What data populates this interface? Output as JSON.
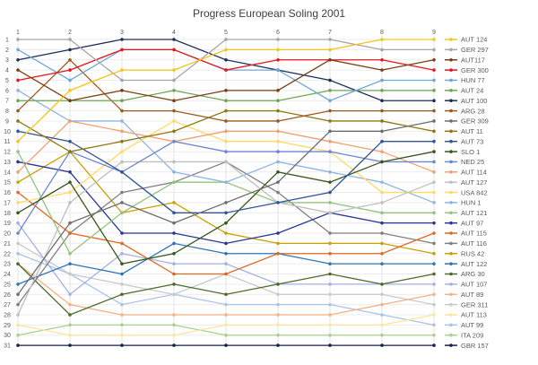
{
  "chart_data": {
    "type": "line",
    "title": "Progress European Soling 2001",
    "xlabel": "",
    "ylabel": "",
    "x": [
      1,
      2,
      3,
      4,
      5,
      6,
      7,
      8,
      9
    ],
    "ylim": [
      1,
      31
    ],
    "y_reversed": true,
    "y_ticks": [
      1,
      2,
      3,
      4,
      5,
      6,
      7,
      8,
      9,
      10,
      11,
      12,
      13,
      14,
      15,
      16,
      17,
      18,
      19,
      20,
      21,
      22,
      23,
      24,
      25,
      26,
      27,
      28,
      29,
      30,
      31
    ],
    "grid": true,
    "legend": "right",
    "series": [
      {
        "name": "AUT 124",
        "color": "#f5c518",
        "values": [
          11,
          6,
          4,
          4,
          2,
          2,
          2,
          1,
          1
        ]
      },
      {
        "name": "GER 297",
        "color": "#a6a6a6",
        "values": [
          1,
          1,
          5,
          5,
          1,
          1,
          1,
          2,
          2
        ]
      },
      {
        "name": "AUT117",
        "color": "#7b3f13",
        "values": [
          4,
          7,
          6,
          7,
          6,
          6,
          3,
          4,
          3
        ]
      },
      {
        "name": "GER 300",
        "color": "#e8141d",
        "values": [
          5,
          4,
          2,
          2,
          4,
          3,
          3,
          3,
          4
        ]
      },
      {
        "name": "HUN 77",
        "color": "#6fa8dc",
        "values": [
          2,
          5,
          2,
          2,
          4,
          4,
          7,
          5,
          5
        ]
      },
      {
        "name": "AUT 24",
        "color": "#6aa84f",
        "values": [
          7,
          7,
          7,
          6,
          7,
          7,
          6,
          6,
          6
        ]
      },
      {
        "name": "AUT 100",
        "color": "#1f2d5c",
        "values": [
          3,
          2,
          1,
          1,
          3,
          4,
          5,
          7,
          7
        ]
      },
      {
        "name": "ARG 28",
        "color": "#9c5a1e",
        "values": [
          8,
          3,
          8,
          8,
          9,
          9,
          8,
          8,
          8
        ]
      },
      {
        "name": "GER 309",
        "color": "#6d6d6d",
        "values": [
          26,
          19,
          17,
          19,
          17,
          15,
          10,
          10,
          9
        ]
      },
      {
        "name": "AUT 11",
        "color": "#8a7a10",
        "values": [
          9,
          12,
          11,
          10,
          8,
          8,
          9,
          9,
          10
        ]
      },
      {
        "name": "AUT 73",
        "color": "#2f5597",
        "values": [
          10,
          11,
          14,
          18,
          18,
          17,
          16,
          11,
          11
        ]
      },
      {
        "name": "SLO 1",
        "color": "#38571a",
        "values": [
          18,
          15,
          23,
          22,
          19,
          14,
          15,
          13,
          12
        ]
      },
      {
        "name": "NED 25",
        "color": "#6d85d6",
        "values": [
          20,
          12,
          14,
          11,
          12,
          12,
          12,
          13,
          13
        ]
      },
      {
        "name": "AUT 114",
        "color": "#f0a070",
        "values": [
          14,
          9,
          10,
          11,
          10,
          10,
          11,
          12,
          14
        ]
      },
      {
        "name": "AUT 127",
        "color": "#bfbfbf",
        "values": [
          28,
          17,
          13,
          13,
          13,
          17,
          18,
          17,
          15
        ]
      },
      {
        "name": "USA 842",
        "color": "#ffd966",
        "values": [
          17,
          16,
          12,
          9,
          11,
          11,
          12,
          16,
          16
        ]
      },
      {
        "name": "HUN 1",
        "color": "#8eb4e3",
        "values": [
          6,
          9,
          9,
          14,
          15,
          13,
          14,
          15,
          17
        ]
      },
      {
        "name": "AUT 121",
        "color": "#93c47d",
        "values": [
          12,
          22,
          18,
          15,
          15,
          17,
          17,
          18,
          18
        ]
      },
      {
        "name": "AUT 97",
        "color": "#283593",
        "values": [
          13,
          14,
          20,
          20,
          21,
          20,
          18,
          19,
          19
        ]
      },
      {
        "name": "AUT 115",
        "color": "#e06820",
        "values": [
          16,
          20,
          21,
          24,
          24,
          22,
          22,
          22,
          20
        ]
      },
      {
        "name": "AUT 116",
        "color": "#7f7f7f",
        "values": [
          27,
          20,
          16,
          15,
          13,
          16,
          20,
          20,
          21
        ]
      },
      {
        "name": "RUS 42",
        "color": "#c9a000",
        "values": [
          15,
          12,
          18,
          17,
          20,
          21,
          21,
          21,
          22
        ]
      },
      {
        "name": "AUT 122",
        "color": "#2e75b6",
        "values": [
          25,
          23,
          24,
          21,
          22,
          22,
          23,
          23,
          23
        ]
      },
      {
        "name": "ARG 30",
        "color": "#4e6b2a",
        "values": [
          23,
          28,
          26,
          25,
          26,
          25,
          24,
          25,
          24
        ]
      },
      {
        "name": "AUT 107",
        "color": "#a4b0e0",
        "values": [
          19,
          26,
          22,
          23,
          23,
          25,
          25,
          25,
          25
        ]
      },
      {
        "name": "AUT 89",
        "color": "#f4b183",
        "values": [
          23,
          27,
          28,
          28,
          28,
          28,
          28,
          27,
          26
        ]
      },
      {
        "name": "GER 311",
        "color": "#c9c9c9",
        "values": [
          21,
          24,
          25,
          26,
          24,
          26,
          26,
          26,
          27
        ]
      },
      {
        "name": "AUT 113",
        "color": "#ffe599",
        "values": [
          29,
          30,
          30,
          30,
          29,
          29,
          29,
          29,
          28
        ]
      },
      {
        "name": "AUT 99",
        "color": "#a9c4e8",
        "values": [
          22,
          24,
          27,
          26,
          27,
          27,
          27,
          28,
          29
        ]
      },
      {
        "name": "ITA 209",
        "color": "#a9d18e",
        "values": [
          30,
          29,
          29,
          29,
          30,
          30,
          30,
          30,
          30
        ]
      },
      {
        "name": "GBR 157",
        "color": "#1a1f4a",
        "values": [
          31,
          31,
          31,
          31,
          31,
          31,
          31,
          31,
          31
        ]
      }
    ]
  }
}
